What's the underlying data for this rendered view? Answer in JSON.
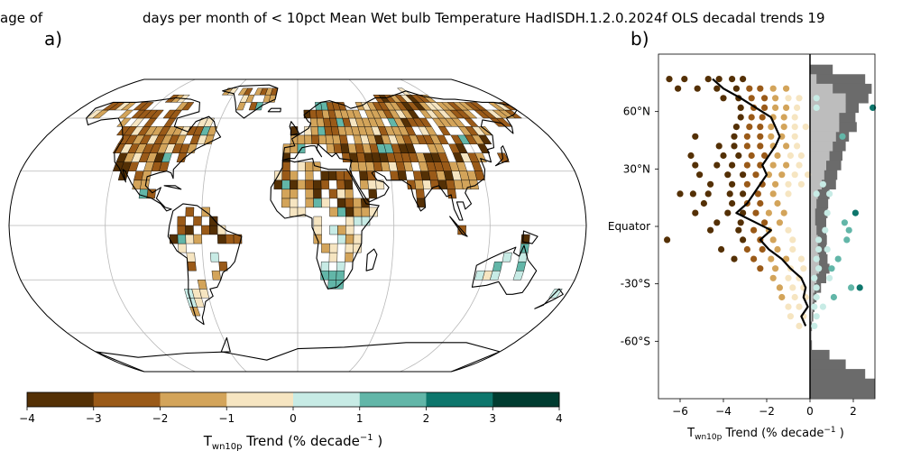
{
  "title_left": "age of",
  "title_right": "days per month of < 10pct Mean Wet bulb Temperature HadISDH.1.2.0.2024f OLS decadal trends 19",
  "panel_labels": {
    "a": "a)",
    "b": "b)"
  },
  "colors": {
    "bins": [
      "#543005",
      "#9a5a18",
      "#d3a45a",
      "#f6e5c1",
      "#c7ebe5",
      "#62b6a8",
      "#0d766c",
      "#003c30"
    ],
    "ocean_bg": "#ffffff",
    "land_outline": "#000000",
    "gridline": "#b8b8b8",
    "hist_land": "#6b6b6b",
    "hist_data": "#bdbdbd"
  },
  "chart_data": [
    {
      "type": "heatmap",
      "panel": "a",
      "projection": "Robinson",
      "colorbar": {
        "ticks": [
          "−4",
          "−3",
          "−2",
          "−1",
          "0",
          "1",
          "2",
          "3",
          "4"
        ],
        "range": [
          -4,
          4
        ],
        "label_main": "T",
        "label_sub": "wn10p",
        "label_rest": " Trend (% decade",
        "label_sup": "−1",
        "label_end": " )"
      }
    },
    {
      "type": "scatter",
      "panel": "b",
      "xlim": [
        -7,
        3
      ],
      "ylim": [
        -90,
        90
      ],
      "xticks": [
        -6,
        -4,
        -2,
        0,
        2
      ],
      "xtick_labels": [
        "−6",
        "−4",
        "−2",
        "0",
        "2"
      ],
      "yticks": [
        60,
        30,
        0,
        -30,
        -60
      ],
      "ytick_labels": [
        "60°N",
        "30°N",
        "Equator",
        "-30°S",
        "-60°S"
      ],
      "xlabel_main": "T",
      "xlabel_sub": "wn10p",
      "xlabel_rest": " Trend (% decade",
      "xlabel_sup": "−1",
      "xlabel_end": " )",
      "zonal_mean": [
        {
          "lat": 77,
          "x": -4.5
        },
        {
          "lat": 72,
          "x": -4.0
        },
        {
          "lat": 67,
          "x": -3.2
        },
        {
          "lat": 62,
          "x": -2.5
        },
        {
          "lat": 57,
          "x": -1.8
        },
        {
          "lat": 52,
          "x": -1.6
        },
        {
          "lat": 47,
          "x": -1.4
        },
        {
          "lat": 42,
          "x": -1.6
        },
        {
          "lat": 37,
          "x": -1.9
        },
        {
          "lat": 32,
          "x": -2.2
        },
        {
          "lat": 27,
          "x": -2.0
        },
        {
          "lat": 22,
          "x": -2.3
        },
        {
          "lat": 17,
          "x": -2.6
        },
        {
          "lat": 12,
          "x": -2.9
        },
        {
          "lat": 7,
          "x": -3.4
        },
        {
          "lat": 2,
          "x": -2.5
        },
        {
          "lat": -2,
          "x": -1.8
        },
        {
          "lat": -7,
          "x": -2.3
        },
        {
          "lat": -12,
          "x": -1.9
        },
        {
          "lat": -17,
          "x": -1.3
        },
        {
          "lat": -22,
          "x": -0.9
        },
        {
          "lat": -27,
          "x": -0.4
        },
        {
          "lat": -32,
          "x": -0.2
        },
        {
          "lat": -37,
          "x": -0.3
        },
        {
          "lat": -42,
          "x": -0.1
        },
        {
          "lat": -47,
          "x": -0.4
        },
        {
          "lat": -52,
          "x": -0.2
        }
      ],
      "points": [
        {
          "lat": 77,
          "x": -6.5
        },
        {
          "lat": 77,
          "x": -5.8
        },
        {
          "lat": 77,
          "x": -4.7
        },
        {
          "lat": 77,
          "x": -4.2
        },
        {
          "lat": 77,
          "x": -3.6
        },
        {
          "lat": 77,
          "x": -3.1
        },
        {
          "lat": 72,
          "x": -6.1
        },
        {
          "lat": 72,
          "x": -5.2
        },
        {
          "lat": 72,
          "x": -4.3
        },
        {
          "lat": 72,
          "x": -3.4
        },
        {
          "lat": 72,
          "x": -2.8
        },
        {
          "lat": 72,
          "x": -2.3
        },
        {
          "lat": 72,
          "x": -1.7
        },
        {
          "lat": 72,
          "x": -1.1
        },
        {
          "lat": 67,
          "x": -4.0
        },
        {
          "lat": 67,
          "x": -3.3
        },
        {
          "lat": 67,
          "x": -2.7
        },
        {
          "lat": 67,
          "x": -2.1
        },
        {
          "lat": 67,
          "x": -1.6
        },
        {
          "lat": 67,
          "x": -1.0
        },
        {
          "lat": 67,
          "x": -0.5
        },
        {
          "lat": 67,
          "x": 0.3
        },
        {
          "lat": 62,
          "x": -3.2
        },
        {
          "lat": 62,
          "x": -2.6
        },
        {
          "lat": 62,
          "x": -2.1
        },
        {
          "lat": 62,
          "x": -1.6
        },
        {
          "lat": 62,
          "x": -1.1
        },
        {
          "lat": 62,
          "x": -0.6
        },
        {
          "lat": 62,
          "x": 0.3
        },
        {
          "lat": 62,
          "x": 2.9
        },
        {
          "lat": 57,
          "x": -3.2
        },
        {
          "lat": 57,
          "x": -2.7
        },
        {
          "lat": 57,
          "x": -2.2
        },
        {
          "lat": 57,
          "x": -1.7
        },
        {
          "lat": 57,
          "x": -1.2
        },
        {
          "lat": 57,
          "x": -0.7
        },
        {
          "lat": 52,
          "x": -3.4
        },
        {
          "lat": 52,
          "x": -2.8
        },
        {
          "lat": 52,
          "x": -2.3
        },
        {
          "lat": 52,
          "x": -1.8
        },
        {
          "lat": 52,
          "x": -1.2
        },
        {
          "lat": 52,
          "x": -0.7
        },
        {
          "lat": 52,
          "x": -0.2
        },
        {
          "lat": 47,
          "x": -5.3
        },
        {
          "lat": 47,
          "x": -3.5
        },
        {
          "lat": 47,
          "x": -2.9
        },
        {
          "lat": 47,
          "x": -2.3
        },
        {
          "lat": 47,
          "x": -1.8
        },
        {
          "lat": 47,
          "x": -1.3
        },
        {
          "lat": 47,
          "x": -0.7
        },
        {
          "lat": 47,
          "x": 1.5
        },
        {
          "lat": 42,
          "x": -4.2
        },
        {
          "lat": 42,
          "x": -3.5
        },
        {
          "lat": 42,
          "x": -2.9
        },
        {
          "lat": 42,
          "x": -2.3
        },
        {
          "lat": 42,
          "x": -1.7
        },
        {
          "lat": 42,
          "x": -1.1
        },
        {
          "lat": 42,
          "x": -0.6
        },
        {
          "lat": 37,
          "x": -5.5
        },
        {
          "lat": 37,
          "x": -4.0
        },
        {
          "lat": 37,
          "x": -3.3
        },
        {
          "lat": 37,
          "x": -2.7
        },
        {
          "lat": 37,
          "x": -2.1
        },
        {
          "lat": 37,
          "x": -1.5
        },
        {
          "lat": 37,
          "x": -0.9
        },
        {
          "lat": 37,
          "x": -0.4
        },
        {
          "lat": 32,
          "x": -5.3
        },
        {
          "lat": 32,
          "x": -4.3
        },
        {
          "lat": 32,
          "x": -3.6
        },
        {
          "lat": 32,
          "x": -2.9
        },
        {
          "lat": 32,
          "x": -2.3
        },
        {
          "lat": 32,
          "x": -1.7
        },
        {
          "lat": 32,
          "x": -1.1
        },
        {
          "lat": 32,
          "x": -0.5
        },
        {
          "lat": 27,
          "x": -5.1
        },
        {
          "lat": 27,
          "x": -3.8
        },
        {
          "lat": 27,
          "x": -3.1
        },
        {
          "lat": 27,
          "x": -2.5
        },
        {
          "lat": 27,
          "x": -1.9
        },
        {
          "lat": 27,
          "x": -1.3
        },
        {
          "lat": 27,
          "x": -0.7
        },
        {
          "lat": 27,
          "x": -0.1
        },
        {
          "lat": 22,
          "x": -4.6
        },
        {
          "lat": 22,
          "x": -3.6
        },
        {
          "lat": 22,
          "x": -2.9
        },
        {
          "lat": 22,
          "x": -2.2
        },
        {
          "lat": 22,
          "x": -1.6
        },
        {
          "lat": 22,
          "x": -1.0
        },
        {
          "lat": 22,
          "x": -0.4
        },
        {
          "lat": 22,
          "x": 0.6
        },
        {
          "lat": 17,
          "x": -6.0
        },
        {
          "lat": 17,
          "x": -5.4
        },
        {
          "lat": 17,
          "x": -4.7
        },
        {
          "lat": 17,
          "x": -3.7
        },
        {
          "lat": 17,
          "x": -3.1
        },
        {
          "lat": 17,
          "x": -2.4
        },
        {
          "lat": 17,
          "x": -1.7
        },
        {
          "lat": 17,
          "x": -1.0
        },
        {
          "lat": 17,
          "x": 0.3
        },
        {
          "lat": 17,
          "x": 0.9
        },
        {
          "lat": 12,
          "x": -4.9
        },
        {
          "lat": 12,
          "x": -3.6
        },
        {
          "lat": 12,
          "x": -2.9
        },
        {
          "lat": 12,
          "x": -2.3
        },
        {
          "lat": 12,
          "x": -1.5
        },
        {
          "lat": 7,
          "x": -5.3
        },
        {
          "lat": 7,
          "x": -3.8
        },
        {
          "lat": 7,
          "x": -3.1
        },
        {
          "lat": 7,
          "x": -2.5
        },
        {
          "lat": 7,
          "x": -1.9
        },
        {
          "lat": 7,
          "x": -1.2
        },
        {
          "lat": 7,
          "x": 0.8
        },
        {
          "lat": 7,
          "x": 2.1
        },
        {
          "lat": 2,
          "x": -4.3
        },
        {
          "lat": 2,
          "x": -3.2
        },
        {
          "lat": 2,
          "x": -2.1
        },
        {
          "lat": 2,
          "x": -1.4
        },
        {
          "lat": 2,
          "x": 1.6
        },
        {
          "lat": -2,
          "x": -4.6
        },
        {
          "lat": -2,
          "x": -3.3
        },
        {
          "lat": -2,
          "x": -2.6
        },
        {
          "lat": -2,
          "x": -1.9
        },
        {
          "lat": -2,
          "x": -1.0
        },
        {
          "lat": -2,
          "x": 0.7
        },
        {
          "lat": -2,
          "x": 1.8
        },
        {
          "lat": -7,
          "x": -6.6
        },
        {
          "lat": -7,
          "x": -3.1
        },
        {
          "lat": -7,
          "x": -2.3
        },
        {
          "lat": -7,
          "x": -1.7
        },
        {
          "lat": -7,
          "x": -0.8
        },
        {
          "lat": -7,
          "x": 0.4
        },
        {
          "lat": -7,
          "x": 1.7
        },
        {
          "lat": -12,
          "x": -4.1
        },
        {
          "lat": -12,
          "x": -2.9
        },
        {
          "lat": -12,
          "x": -2.2
        },
        {
          "lat": -12,
          "x": -1.5
        },
        {
          "lat": -12,
          "x": -0.8
        },
        {
          "lat": -12,
          "x": 0.4
        },
        {
          "lat": -12,
          "x": 0.8
        },
        {
          "lat": -17,
          "x": -3.5
        },
        {
          "lat": -17,
          "x": -2.6
        },
        {
          "lat": -17,
          "x": -1.8
        },
        {
          "lat": -17,
          "x": -1.1
        },
        {
          "lat": -17,
          "x": -0.4
        },
        {
          "lat": -17,
          "x": 0.3
        },
        {
          "lat": -17,
          "x": 1.3
        },
        {
          "lat": -22,
          "x": -2.3
        },
        {
          "lat": -22,
          "x": -1.6
        },
        {
          "lat": -22,
          "x": -0.9
        },
        {
          "lat": -22,
          "x": -0.3
        },
        {
          "lat": -22,
          "x": 0.4
        },
        {
          "lat": -22,
          "x": 1.0
        },
        {
          "lat": -27,
          "x": -1.7
        },
        {
          "lat": -27,
          "x": -1.0
        },
        {
          "lat": -27,
          "x": -0.5
        },
        {
          "lat": -27,
          "x": 0.2
        },
        {
          "lat": -27,
          "x": 0.9
        },
        {
          "lat": -32,
          "x": -1.4
        },
        {
          "lat": -32,
          "x": -0.8
        },
        {
          "lat": -32,
          "x": -0.3
        },
        {
          "lat": -32,
          "x": 0.3
        },
        {
          "lat": -32,
          "x": 1.9
        },
        {
          "lat": -32,
          "x": 2.3
        },
        {
          "lat": -37,
          "x": -1.3
        },
        {
          "lat": -37,
          "x": -0.7
        },
        {
          "lat": -37,
          "x": -0.2
        },
        {
          "lat": -37,
          "x": 0.3
        },
        {
          "lat": -37,
          "x": 1.1
        },
        {
          "lat": -42,
          "x": -1.0
        },
        {
          "lat": -42,
          "x": -0.5
        },
        {
          "lat": -42,
          "x": 0.2
        },
        {
          "lat": -42,
          "x": 0.6
        },
        {
          "lat": -47,
          "x": -0.9
        },
        {
          "lat": -47,
          "x": -0.3
        },
        {
          "lat": -47,
          "x": 0.3
        },
        {
          "lat": -52,
          "x": -0.5
        },
        {
          "lat": -52,
          "x": 0.2
        }
      ],
      "hist_land_fraction": [
        {
          "lat": 82,
          "v": 0.35
        },
        {
          "lat": 77,
          "v": 0.85
        },
        {
          "lat": 72,
          "v": 0.95
        },
        {
          "lat": 67,
          "v": 0.9
        },
        {
          "lat": 62,
          "v": 0.75
        },
        {
          "lat": 57,
          "v": 0.7
        },
        {
          "lat": 52,
          "v": 0.72
        },
        {
          "lat": 47,
          "v": 0.6
        },
        {
          "lat": 42,
          "v": 0.55
        },
        {
          "lat": 37,
          "v": 0.5
        },
        {
          "lat": 32,
          "v": 0.48
        },
        {
          "lat": 27,
          "v": 0.42
        },
        {
          "lat": 22,
          "v": 0.4
        },
        {
          "lat": 17,
          "v": 0.3
        },
        {
          "lat": 12,
          "v": 0.28
        },
        {
          "lat": 7,
          "v": 0.27
        },
        {
          "lat": 2,
          "v": 0.25
        },
        {
          "lat": -2,
          "v": 0.25
        },
        {
          "lat": -7,
          "v": 0.26
        },
        {
          "lat": -12,
          "v": 0.25
        },
        {
          "lat": -17,
          "v": 0.27
        },
        {
          "lat": -22,
          "v": 0.3
        },
        {
          "lat": -27,
          "v": 0.25
        },
        {
          "lat": -32,
          "v": 0.17
        },
        {
          "lat": -37,
          "v": 0.1
        },
        {
          "lat": -42,
          "v": 0.07
        },
        {
          "lat": -47,
          "v": 0.05
        },
        {
          "lat": -52,
          "v": 0.03
        },
        {
          "lat": -57,
          "v": 0.02
        },
        {
          "lat": -62,
          "v": 0.03
        },
        {
          "lat": -67,
          "v": 0.3
        },
        {
          "lat": -72,
          "v": 0.55
        },
        {
          "lat": -77,
          "v": 0.85
        },
        {
          "lat": -82,
          "v": 1.0
        },
        {
          "lat": -87,
          "v": 1.0
        }
      ],
      "hist_data_fraction": [
        {
          "lat": 77,
          "v": 0.1
        },
        {
          "lat": 72,
          "v": 0.35
        },
        {
          "lat": 67,
          "v": 0.55
        },
        {
          "lat": 62,
          "v": 0.55
        },
        {
          "lat": 57,
          "v": 0.45
        },
        {
          "lat": 52,
          "v": 0.45
        },
        {
          "lat": 47,
          "v": 0.4
        },
        {
          "lat": 42,
          "v": 0.35
        },
        {
          "lat": 37,
          "v": 0.3
        },
        {
          "lat": 32,
          "v": 0.25
        },
        {
          "lat": 27,
          "v": 0.22
        },
        {
          "lat": 22,
          "v": 0.18
        },
        {
          "lat": 17,
          "v": 0.12
        },
        {
          "lat": 12,
          "v": 0.1
        },
        {
          "lat": 7,
          "v": 0.08
        },
        {
          "lat": 2,
          "v": 0.08
        },
        {
          "lat": -2,
          "v": 0.1
        },
        {
          "lat": -7,
          "v": 0.12
        },
        {
          "lat": -12,
          "v": 0.12
        },
        {
          "lat": -17,
          "v": 0.14
        },
        {
          "lat": -22,
          "v": 0.14
        },
        {
          "lat": -27,
          "v": 0.1
        },
        {
          "lat": -32,
          "v": 0.07
        },
        {
          "lat": -37,
          "v": 0.05
        },
        {
          "lat": -42,
          "v": 0.04
        },
        {
          "lat": -47,
          "v": 0.03
        }
      ]
    }
  ]
}
